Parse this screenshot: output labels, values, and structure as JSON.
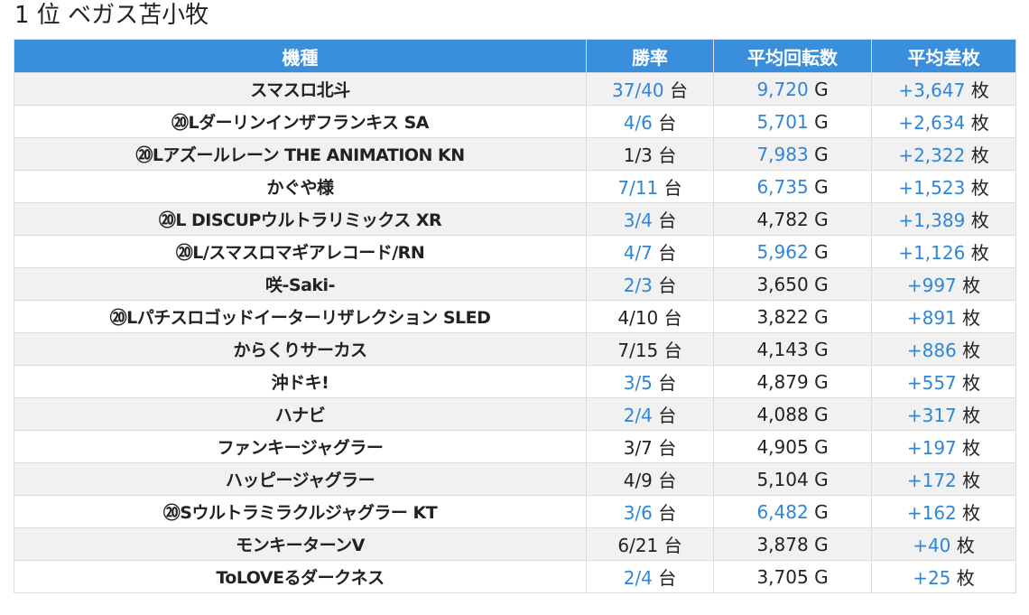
{
  "title": "1 位 ベガス苫小牧",
  "colors": {
    "header_bg": "#3a8fdd",
    "accent_text": "#2f86d6",
    "stripe": "#f1f1f1"
  },
  "headers": [
    "機種",
    "勝率",
    "平均回転数",
    "平均差枚"
  ],
  "units": {
    "rate": "台",
    "spins": "G",
    "diff": "枚"
  },
  "rows": [
    {
      "name": "スマスロ北斗",
      "rate": "37/40",
      "spins": "9,720",
      "diff": "+3,647",
      "rate_hl": true,
      "spins_hl": true
    },
    {
      "name": "⑳Lダーリンインザフランキス SA",
      "rate": "4/6",
      "spins": "5,701",
      "diff": "+2,634",
      "rate_hl": true,
      "spins_hl": true
    },
    {
      "name": "⑳Lアズールレーン THE ANIMATION KN",
      "rate": "1/3",
      "spins": "7,983",
      "diff": "+2,322",
      "rate_hl": false,
      "spins_hl": true
    },
    {
      "name": "かぐや様",
      "rate": "7/11",
      "spins": "6,735",
      "diff": "+1,523",
      "rate_hl": true,
      "spins_hl": true
    },
    {
      "name": "⑳L DISCUPウルトラリミックス XR",
      "rate": "3/4",
      "spins": "4,782",
      "diff": "+1,389",
      "rate_hl": true,
      "spins_hl": false
    },
    {
      "name": "⑳L/スマスロマギアレコード/RN",
      "rate": "4/7",
      "spins": "5,962",
      "diff": "+1,126",
      "rate_hl": true,
      "spins_hl": true
    },
    {
      "name": "咲-Saki-",
      "rate": "2/3",
      "spins": "3,650",
      "diff": "+997",
      "rate_hl": true,
      "spins_hl": false
    },
    {
      "name": "⑳Lパチスロゴッドイーターリザレクション SLED",
      "rate": "4/10",
      "spins": "3,822",
      "diff": "+891",
      "rate_hl": false,
      "spins_hl": false
    },
    {
      "name": "からくりサーカス",
      "rate": "7/15",
      "spins": "4,143",
      "diff": "+886",
      "rate_hl": false,
      "spins_hl": false
    },
    {
      "name": "沖ドキ!",
      "rate": "3/5",
      "spins": "4,879",
      "diff": "+557",
      "rate_hl": true,
      "spins_hl": false
    },
    {
      "name": "ハナビ",
      "rate": "2/4",
      "spins": "4,088",
      "diff": "+317",
      "rate_hl": true,
      "spins_hl": false
    },
    {
      "name": "ファンキージャグラー",
      "rate": "3/7",
      "spins": "4,905",
      "diff": "+197",
      "rate_hl": false,
      "spins_hl": false
    },
    {
      "name": "ハッピージャグラー",
      "rate": "4/9",
      "spins": "5,104",
      "diff": "+172",
      "rate_hl": false,
      "spins_hl": false
    },
    {
      "name": "⑳Sウルトラミラクルジャグラー KT",
      "rate": "3/6",
      "spins": "6,482",
      "diff": "+162",
      "rate_hl": true,
      "spins_hl": true
    },
    {
      "name": "モンキーターンV",
      "rate": "6/21",
      "spins": "3,878",
      "diff": "+40",
      "rate_hl": false,
      "spins_hl": false
    },
    {
      "name": "ToLOVEるダークネス",
      "rate": "2/4",
      "spins": "3,705",
      "diff": "+25",
      "rate_hl": true,
      "spins_hl": false
    }
  ]
}
